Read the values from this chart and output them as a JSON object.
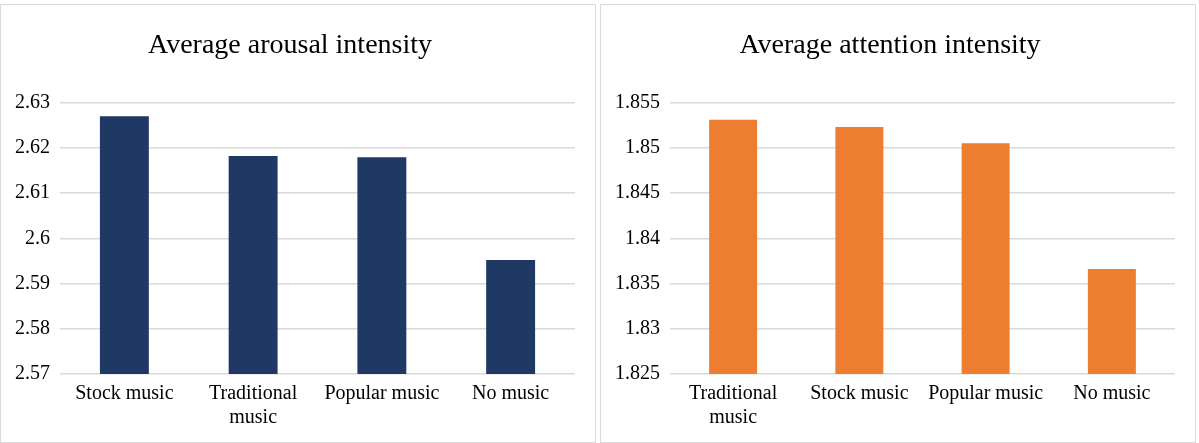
{
  "chart_data": [
    {
      "type": "bar",
      "title": "Average arousal intensity",
      "categories": [
        "Stock music",
        "Traditional music",
        "Popular music",
        "No music"
      ],
      "values": [
        2.627,
        2.6182,
        2.6179,
        2.5952
      ],
      "color": "#203864",
      "ylim": [
        2.57,
        2.63
      ],
      "yticks": [
        2.57,
        2.58,
        2.59,
        2.6,
        2.61,
        2.62,
        2.63
      ],
      "grid": "y"
    },
    {
      "type": "bar",
      "title": "Average attention intensity",
      "categories": [
        "Traditional music",
        "Stock music",
        "Popular music",
        "No music"
      ],
      "values": [
        1.8531,
        1.8523,
        1.8505,
        1.8366
      ],
      "color": "#ed7d31",
      "ylim": [
        1.825,
        1.855
      ],
      "yticks": [
        1.825,
        1.83,
        1.835,
        1.84,
        1.845,
        1.85,
        1.855
      ],
      "grid": "y"
    }
  ]
}
